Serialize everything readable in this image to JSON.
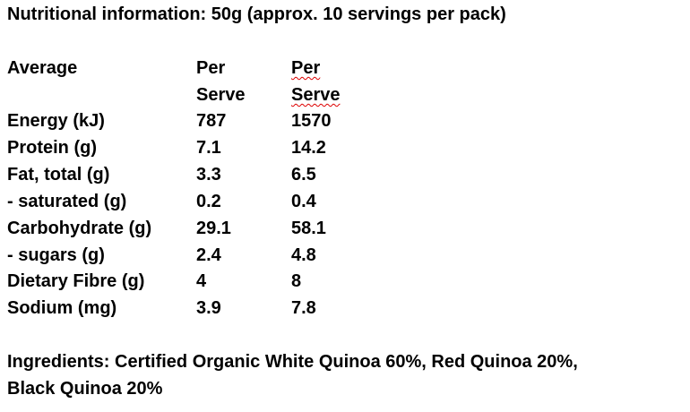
{
  "header": {
    "title": "Nutritional information: 50g (approx. 10 servings per pack)"
  },
  "table": {
    "columns": [
      "Average",
      "Per Serve",
      "Per Serve"
    ],
    "rows": [
      [
        "Energy (kJ)",
        787,
        1570
      ],
      [
        "Protein (g)",
        7.1,
        14.2
      ],
      [
        "Fat, total (g)",
        3.3,
        6.5
      ],
      [
        "- saturated (g)",
        0.2,
        0.4
      ],
      [
        "Carbohydrate (g)",
        29.1,
        58.1
      ],
      [
        "- sugars (g)",
        2.4,
        4.8
      ],
      [
        "Dietary Fibre (g)",
        4,
        8
      ],
      [
        "Sodium (mg)",
        3.9,
        7.8
      ]
    ]
  },
  "ingredients": {
    "lines": [
      "Ingredients: Certified Organic White Quinoa 60%, Red Quinoa 20%,",
      "Black Quinoa 20%"
    ]
  }
}
